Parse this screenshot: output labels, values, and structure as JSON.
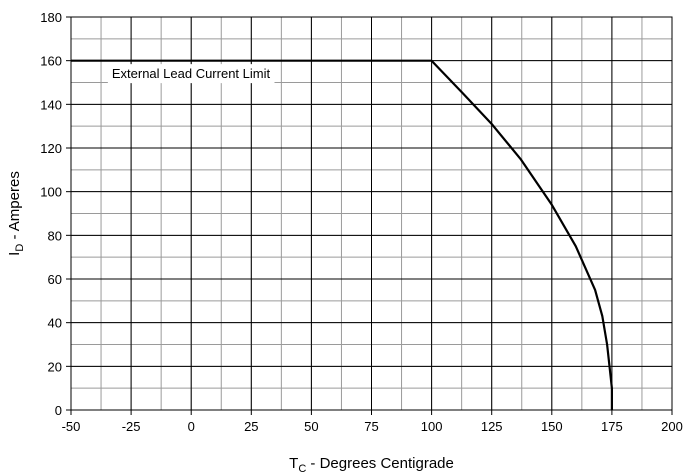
{
  "chart_data": {
    "type": "line",
    "x_axis": {
      "label_main": "T",
      "label_sub": "C",
      "label_rest": " - Degrees Centigrade",
      "min": -50,
      "max": 200,
      "ticks": [
        "-50",
        "-25",
        "0",
        "25",
        "50",
        "75",
        "100",
        "125",
        "150",
        "175",
        "200"
      ],
      "minor_step": 12.5
    },
    "y_axis": {
      "label_main": "I",
      "label_sub": "D",
      "label_rest": " - Amperes",
      "min": 0,
      "max": 180,
      "ticks": [
        "0",
        "20",
        "40",
        "60",
        "80",
        "100",
        "120",
        "140",
        "160",
        "180"
      ],
      "minor_step": 10
    },
    "grid": true,
    "series": [
      {
        "x": [
          -50,
          100,
          113,
          125,
          137,
          150,
          160,
          168,
          171,
          173,
          174,
          175,
          175
        ],
        "y": [
          160,
          160,
          145,
          131,
          115,
          94,
          75,
          55,
          43,
          30,
          20,
          10,
          0
        ]
      }
    ],
    "annotations": [
      {
        "text": "External Lead Current Limit",
        "x": -33,
        "y": 152
      }
    ]
  }
}
